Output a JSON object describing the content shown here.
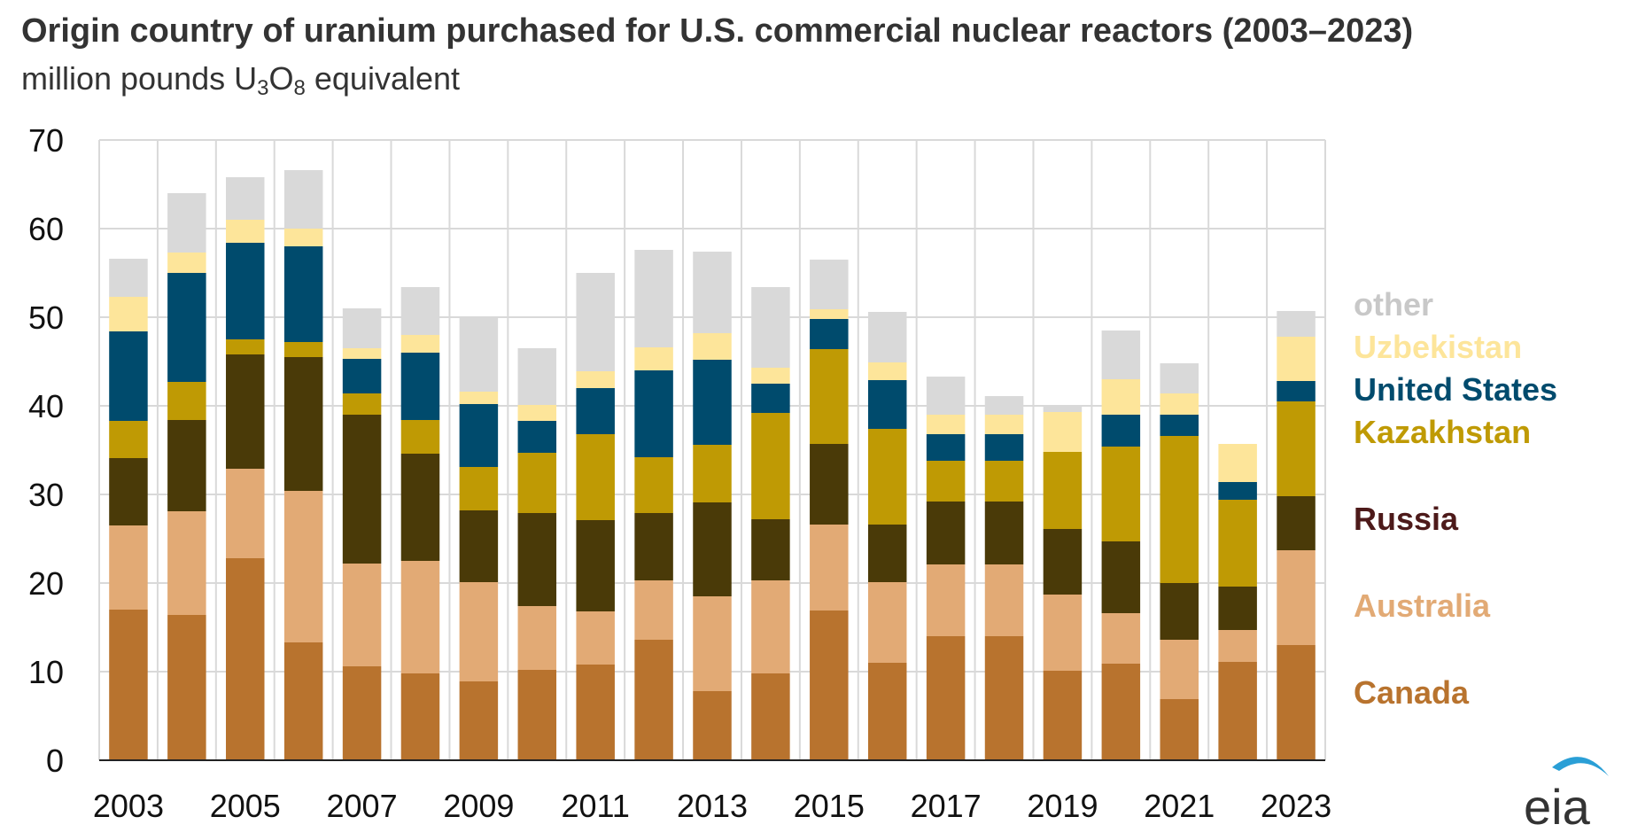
{
  "title": "Origin country of uranium purchased for U.S. commercial nuclear reactors (2003–2023)",
  "subtitle": {
    "prefix": "million pounds U",
    "sub1": "3",
    "mid": "O",
    "sub2": "8",
    "suffix": " equivalent"
  },
  "logo_text": "eia",
  "colors": {
    "Canada": "#b8732e",
    "Australia": "#e2aa75",
    "Russia": "#4a3a08",
    "Kazakhstan": "#bf9a04",
    "United States": "#004b6d",
    "Uzbekistan": "#fde59a",
    "other": "#d9d9d9",
    "grid": "#d9d9d9",
    "legend_text": {
      "Canada": "#b8732e",
      "Australia": "#e2aa75",
      "Russia": "#4d1a1a",
      "Kazakhstan": "#bf9a04",
      "United States": "#004b6d",
      "Uzbekistan": "#fde59a",
      "other": "#c8c8c8"
    }
  },
  "chart_data": {
    "type": "bar",
    "stacked": true,
    "categories": [
      "2003",
      "2004",
      "2005",
      "2006",
      "2007",
      "2008",
      "2009",
      "2010",
      "2011",
      "2012",
      "2013",
      "2014",
      "2015",
      "2016",
      "2017",
      "2018",
      "2019",
      "2020",
      "2021",
      "2022",
      "2023"
    ],
    "x_tick_labels": [
      "2003",
      "2005",
      "2007",
      "2009",
      "2011",
      "2013",
      "2015",
      "2017",
      "2019",
      "2021",
      "2023"
    ],
    "ylim": [
      0,
      70
    ],
    "y_ticks": [
      "0",
      "10",
      "20",
      "30",
      "40",
      "50",
      "60",
      "70"
    ],
    "grid": true,
    "legend_position": "right",
    "series": [
      {
        "name": "Canada",
        "values": [
          17.0,
          16.4,
          22.8,
          13.3,
          10.6,
          9.8,
          8.9,
          10.2,
          10.8,
          13.6,
          7.8,
          9.8,
          16.9,
          11.0,
          14.0,
          14.0,
          10.1,
          10.9,
          6.9,
          11.1,
          13.0
        ]
      },
      {
        "name": "Australia",
        "values": [
          9.5,
          11.7,
          10.1,
          17.1,
          11.6,
          12.7,
          11.2,
          7.2,
          6.0,
          6.7,
          10.7,
          10.5,
          9.7,
          9.1,
          8.1,
          8.1,
          8.6,
          5.7,
          6.7,
          3.6,
          10.7
        ]
      },
      {
        "name": "Russia",
        "values": [
          7.6,
          10.3,
          12.9,
          15.1,
          16.8,
          12.1,
          8.1,
          10.5,
          10.3,
          7.6,
          10.6,
          6.9,
          9.1,
          6.5,
          7.1,
          7.1,
          7.4,
          8.1,
          6.4,
          4.9,
          6.1
        ]
      },
      {
        "name": "Kazakhstan",
        "values": [
          4.2,
          4.3,
          1.7,
          1.7,
          2.4,
          3.8,
          4.9,
          6.8,
          9.7,
          6.3,
          6.5,
          12.0,
          10.7,
          10.8,
          4.6,
          4.6,
          8.7,
          10.7,
          16.6,
          9.8,
          10.7
        ]
      },
      {
        "name": "United States",
        "values": [
          10.1,
          12.3,
          10.9,
          10.8,
          3.9,
          7.6,
          7.1,
          3.6,
          5.2,
          9.8,
          9.6,
          3.3,
          3.4,
          5.5,
          3.0,
          3.0,
          0.0,
          3.6,
          2.4,
          2.0,
          2.3
        ]
      },
      {
        "name": "Uzbekistan",
        "values": [
          3.9,
          2.3,
          2.6,
          2.0,
          1.2,
          2.0,
          1.4,
          1.8,
          1.9,
          2.6,
          3.0,
          1.8,
          1.1,
          2.0,
          2.2,
          2.2,
          4.5,
          4.0,
          2.4,
          4.3,
          5.0
        ]
      },
      {
        "name": "other",
        "values": [
          4.3,
          6.7,
          4.8,
          6.6,
          4.5,
          5.4,
          8.5,
          6.4,
          11.1,
          11.0,
          9.2,
          9.1,
          5.6,
          5.7,
          4.3,
          2.1,
          0.8,
          5.5,
          3.4,
          0.0,
          2.9
        ]
      }
    ],
    "legend_order": [
      "other",
      "Uzbekistan",
      "United States",
      "Kazakhstan",
      "Russia",
      "Australia",
      "Canada"
    ]
  }
}
